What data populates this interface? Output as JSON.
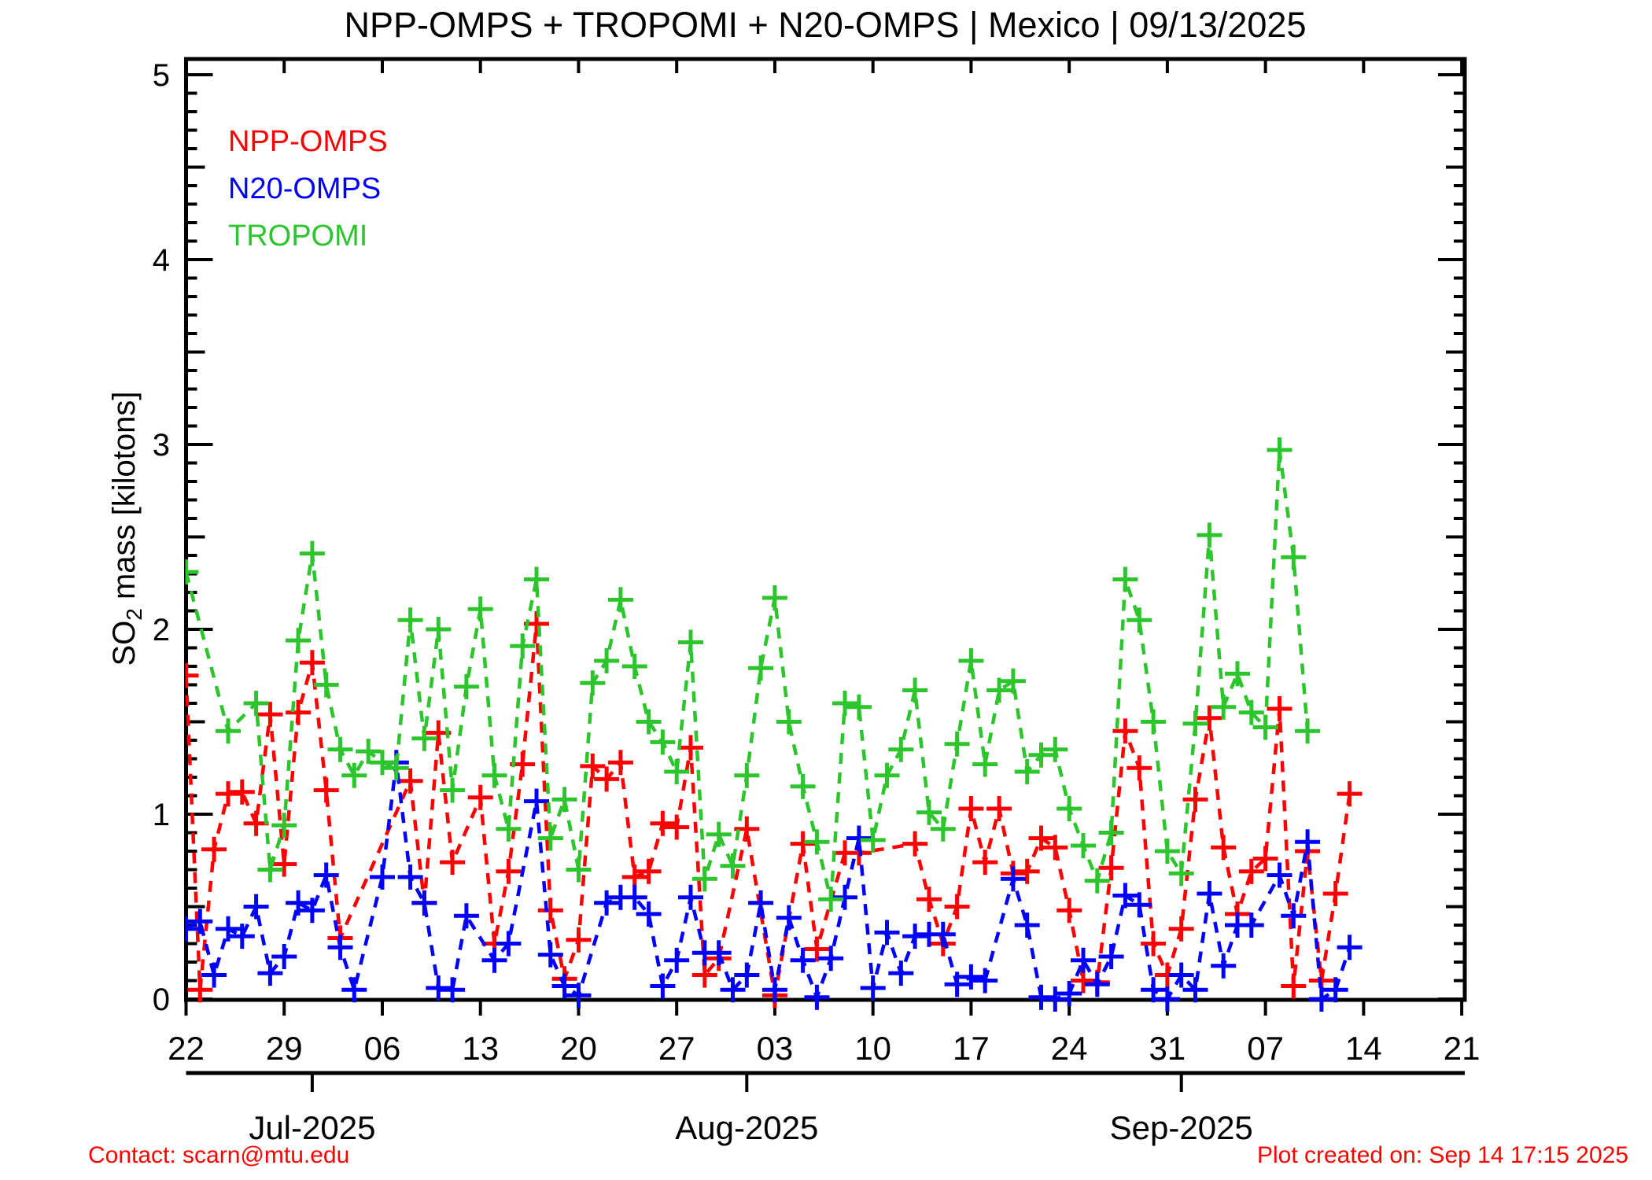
{
  "title": "NPP-OMPS + TROPOMI + N20-OMPS | Mexico | 09/13/2025",
  "labels": {
    "y_main": "SO",
    "y_sub": "2",
    "y_rest": " mass [kilotons]"
  },
  "footer_left": "Contact: scarn@mtu.edu",
  "footer_right": "Plot created on: Sep 14 17:15 2025",
  "colors": {
    "npp_omps": "#ff0000",
    "n20_omps": "#0000ff",
    "tropomi": "#2cc52c",
    "axis": "#000000",
    "footer": "#ff0000"
  },
  "chart_data": {
    "type": "line",
    "title": "NPP-OMPS + TROPOMI + N20-OMPS | Mexico | 09/13/2025",
    "xlabel": "",
    "ylabel": "SO2 mass [kilotons]",
    "start_date": "2025-06-22",
    "grid": false,
    "legend_position": "top-left-inside",
    "y_axis": {
      "min": 0,
      "max": 5,
      "major_step": 1,
      "medium_step": 0.5,
      "minor_step": 0.1,
      "tick_labels": [
        "0",
        "1",
        "2",
        "3",
        "4",
        "5"
      ]
    },
    "x_axis": {
      "span_days": 91,
      "week_tick_days": [
        0,
        7,
        14,
        21,
        28,
        35,
        42,
        49,
        56,
        63,
        70,
        77,
        84,
        91
      ],
      "week_tick_labels": [
        "22",
        "29",
        "06",
        "13",
        "20",
        "27",
        "03",
        "10",
        "17",
        "24",
        "31",
        "07",
        "14",
        "21"
      ],
      "month_ticks": [
        {
          "day": 9,
          "label": "Jul-2025"
        },
        {
          "day": 40,
          "label": "Aug-2025"
        },
        {
          "day": 71,
          "label": "Sep-2025"
        }
      ]
    },
    "series": [
      {
        "name": "NPP-OMPS",
        "color": "#ff0000",
        "marker": "plus",
        "linestyle": "dashed",
        "values": [
          1.75,
          0.05,
          0.81,
          1.11,
          1.12,
          0.95,
          1.54,
          0.73,
          1.55,
          1.82,
          1.13,
          0.33,
          null,
          null,
          null,
          null,
          1.18,
          0.52,
          1.44,
          0.74,
          null,
          1.09,
          0.3,
          0.69,
          1.27,
          2.03,
          0.48,
          0.11,
          0.32,
          1.26,
          1.19,
          1.28,
          0.66,
          0.69,
          0.95,
          0.93,
          1.36,
          0.13,
          0.22,
          null,
          0.92,
          null,
          0.02,
          null,
          0.84,
          0.27,
          null,
          0.79,
          0.79,
          null,
          null,
          null,
          0.84,
          0.54,
          0.3,
          0.5,
          1.03,
          0.74,
          1.03,
          0.68,
          0.69,
          0.87,
          0.82,
          0.48,
          0.1,
          0.09,
          0.71,
          1.45,
          1.25,
          0.3,
          0.13,
          0.38,
          1.08,
          1.52,
          0.82,
          0.46,
          0.69,
          0.76,
          1.57,
          0.07,
          0.8,
          0.1,
          0.57,
          1.11
        ]
      },
      {
        "name": "N20-OMPS",
        "color": "#0000ff",
        "marker": "plus",
        "linestyle": "dashed",
        "values": [
          0.38,
          0.42,
          0.13,
          0.38,
          0.34,
          0.5,
          0.14,
          0.23,
          0.52,
          0.48,
          0.67,
          0.28,
          0.05,
          null,
          0.66,
          1.28,
          0.66,
          0.52,
          0.06,
          0.05,
          0.45,
          null,
          0.21,
          0.3,
          null,
          1.07,
          0.24,
          0.07,
          0.02,
          null,
          0.52,
          0.55,
          0.55,
          0.46,
          0.07,
          0.21,
          0.55,
          0.25,
          0.25,
          0.05,
          0.13,
          0.52,
          0.05,
          0.44,
          0.21,
          0.01,
          0.22,
          0.55,
          0.87,
          0.06,
          0.36,
          0.14,
          0.34,
          0.35,
          0.35,
          0.08,
          0.12,
          0.1,
          null,
          0.65,
          0.4,
          0.01,
          0.0,
          0.03,
          0.21,
          0.08,
          0.23,
          0.56,
          0.51,
          0.05,
          0.0,
          0.13,
          0.05,
          0.57,
          0.18,
          0.4,
          0.4,
          null,
          0.67,
          0.45,
          0.85,
          0.0,
          0.05,
          0.28
        ]
      },
      {
        "name": "TROPOMI",
        "color": "#2cc52c",
        "marker": "plus",
        "linestyle": "dashed",
        "values": [
          2.31,
          null,
          null,
          1.45,
          null,
          1.6,
          0.7,
          0.94,
          1.94,
          2.41,
          1.7,
          1.35,
          1.21,
          1.34,
          1.28,
          1.25,
          2.05,
          1.41,
          2.0,
          1.13,
          1.69,
          2.11,
          1.21,
          0.92,
          1.91,
          2.27,
          0.87,
          1.08,
          0.7,
          1.71,
          1.83,
          2.16,
          1.8,
          1.5,
          1.39,
          1.23,
          1.93,
          0.65,
          0.89,
          0.72,
          1.21,
          1.79,
          2.17,
          1.5,
          1.15,
          0.85,
          0.54,
          1.6,
          1.58,
          0.86,
          1.21,
          1.35,
          1.67,
          1.01,
          0.92,
          1.38,
          1.83,
          1.27,
          1.67,
          1.72,
          1.23,
          1.32,
          1.35,
          1.03,
          0.83,
          0.64,
          0.9,
          2.27,
          2.05,
          1.5,
          0.8,
          0.68,
          1.49,
          2.51,
          1.58,
          1.76,
          1.55,
          1.47,
          2.97,
          2.39,
          1.45,
          null,
          null,
          null
        ]
      }
    ]
  }
}
